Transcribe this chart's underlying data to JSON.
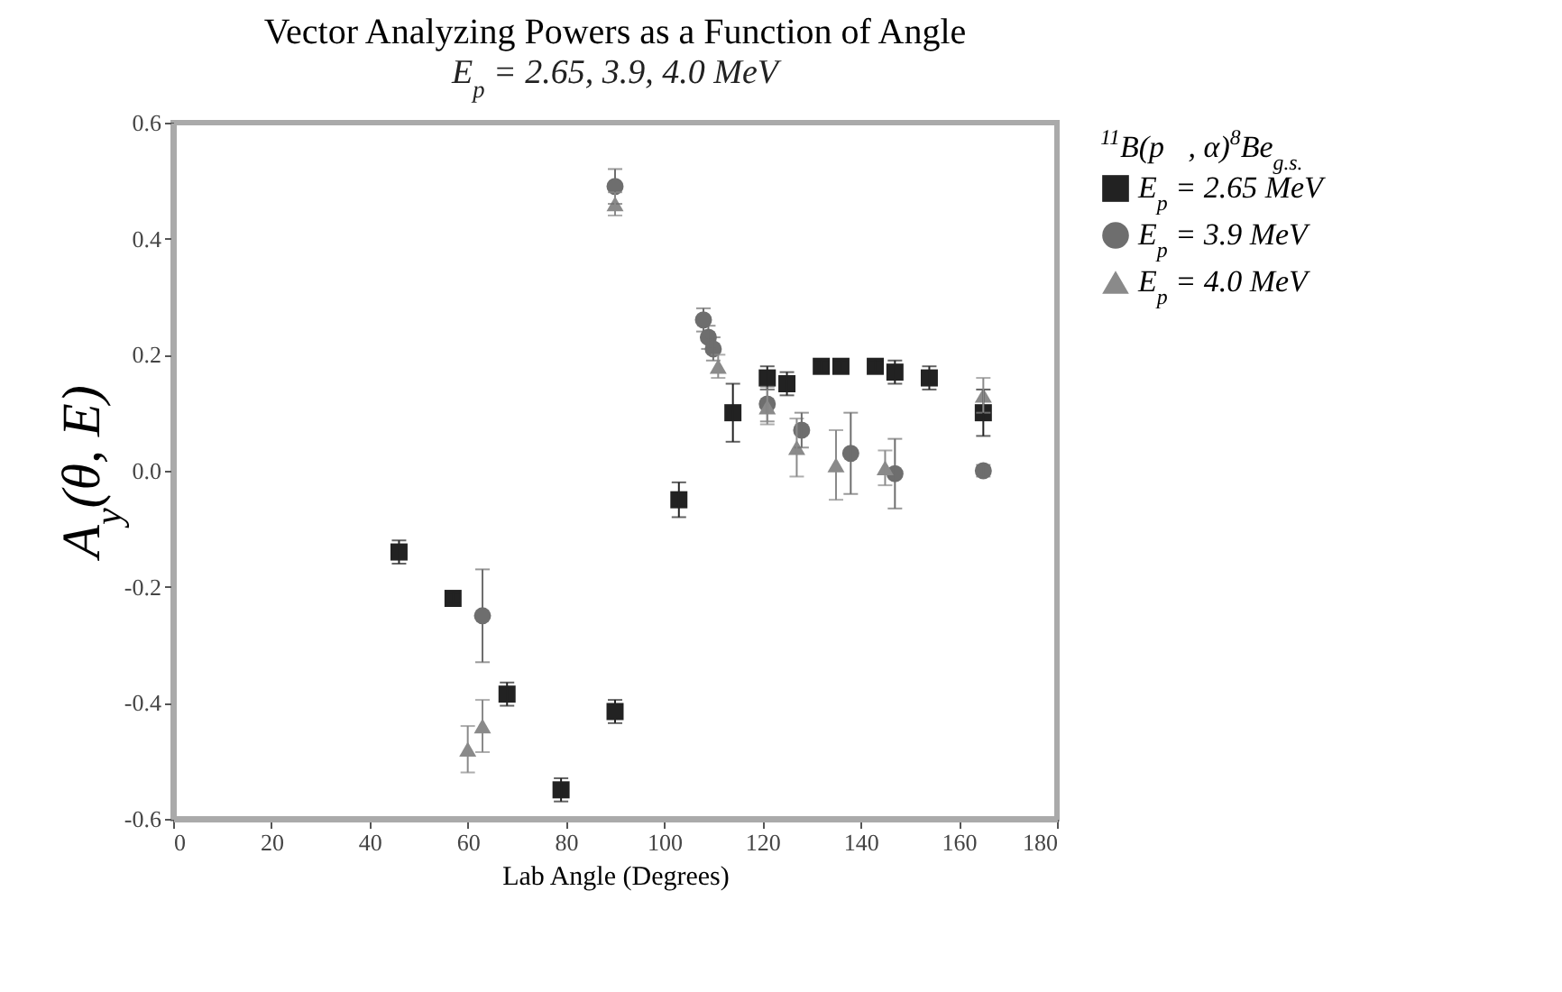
{
  "chart_data": {
    "type": "scatter",
    "title": "Vector Analyzing Powers as a Function of Angle",
    "subtitle": "E$_{p}$ = 2.65, 3.9, 4.0 MeV",
    "xlabel": "Lab Angle (Degrees)",
    "ylabel": "A$_{y}$(θ, E)",
    "legend_title": "$^{11}$B(p⃗, α)$^{8}$Be$_{g.s.}$",
    "xlim": [
      0,
      180
    ],
    "xticks": [
      0,
      20,
      40,
      60,
      80,
      100,
      120,
      140,
      160,
      180
    ],
    "ylim": [
      -0.6,
      0.6
    ],
    "yticks": [
      {
        "value": -0.6,
        "label": "-0.6"
      },
      -0.4,
      -0.2,
      {
        "value": 0,
        "label": "0.0"
      },
      0.2,
      0.4,
      0.6
    ],
    "grid": false,
    "legend": "top right",
    "series": [
      {
        "name": "E$_{p}$ = 2.65 MeV",
        "color": "#222222",
        "marker": "square",
        "x": [
          46,
          57,
          68,
          79,
          90,
          103,
          114,
          121,
          125,
          132,
          136,
          143,
          147,
          154,
          165
        ],
        "values": [
          -0.14,
          -0.22,
          -0.385,
          -0.55,
          -0.415,
          -0.05,
          0.1,
          0.16,
          0.15,
          0.18,
          0.18,
          0.18,
          0.17,
          0.16,
          0.1
        ],
        "errors": [
          0.02,
          0.01,
          0.02,
          0.02,
          0.02,
          0.03,
          0.05,
          0.02,
          0.02,
          0.01,
          0.01,
          0.01,
          0.02,
          0.02,
          0.04
        ]
      },
      {
        "name": "E$_{p}$ = 3.9 MeV",
        "color": "#6e6e6e",
        "marker": "circle",
        "x": [
          63,
          90,
          108,
          109,
          110,
          121,
          128,
          138,
          147,
          165
        ],
        "values": [
          -0.25,
          0.49,
          0.26,
          0.23,
          0.21,
          0.115,
          0.07,
          0.03,
          -0.005,
          0.0
        ],
        "errors": [
          0.08,
          0.03,
          0.02,
          0.02,
          0.02,
          0.03,
          0.03,
          0.07,
          0.06,
          0.01
        ]
      },
      {
        "name": "E$_{p}$ = 4.0 MeV",
        "color": "#8a8a8a",
        "marker": "triangle",
        "x": [
          60,
          63,
          90,
          111,
          121,
          127,
          135,
          145,
          165
        ],
        "values": [
          -0.48,
          -0.44,
          0.46,
          0.18,
          0.11,
          0.04,
          0.01,
          0.005,
          0.13
        ],
        "errors": [
          0.04,
          0.045,
          0.02,
          0.02,
          0.03,
          0.05,
          0.06,
          0.03,
          0.03
        ]
      }
    ]
  }
}
